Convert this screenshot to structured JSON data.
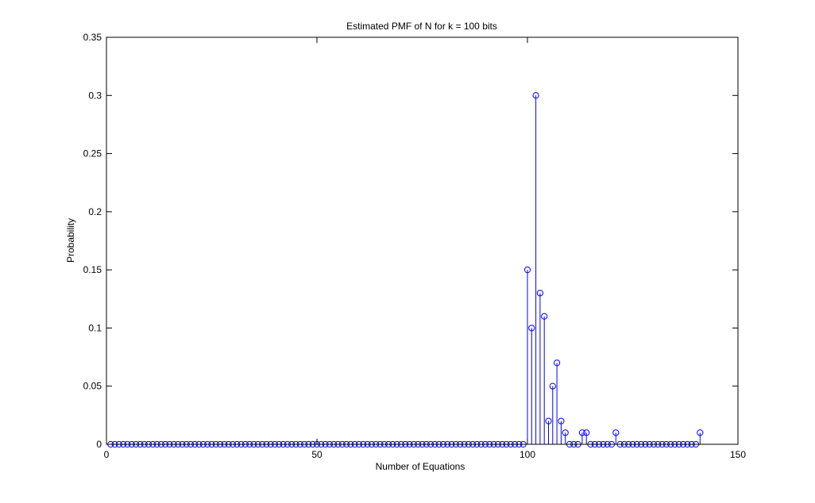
{
  "chart_data": {
    "type": "stem",
    "title": "Estimated PMF of N for k = 100 bits",
    "xlabel": "Number of Equations",
    "ylabel": "Probability",
    "xlim": [
      0,
      150
    ],
    "ylim": [
      0,
      0.35
    ],
    "xticks": [
      0,
      50,
      100,
      150
    ],
    "xtick_labels": [
      "0",
      "50",
      "100",
      "150"
    ],
    "yticks": [
      0,
      0.05,
      0.1,
      0.15,
      0.2,
      0.25,
      0.3,
      0.35
    ],
    "ytick_labels": [
      "0",
      "0.05",
      "0.1",
      "0.15",
      "0.2",
      "0.25",
      "0.3",
      "0.35"
    ],
    "grid": false,
    "marker": "circle",
    "color": "#0000ff",
    "x_range": [
      1,
      141
    ],
    "nonzero_points": [
      {
        "x": 100,
        "y": 0.15
      },
      {
        "x": 101,
        "y": 0.1
      },
      {
        "x": 102,
        "y": 0.3
      },
      {
        "x": 103,
        "y": 0.13
      },
      {
        "x": 104,
        "y": 0.11
      },
      {
        "x": 105,
        "y": 0.02
      },
      {
        "x": 106,
        "y": 0.05
      },
      {
        "x": 107,
        "y": 0.07
      },
      {
        "x": 108,
        "y": 0.02
      },
      {
        "x": 109,
        "y": 0.01
      },
      {
        "x": 113,
        "y": 0.01
      },
      {
        "x": 114,
        "y": 0.01
      },
      {
        "x": 121,
        "y": 0.01
      },
      {
        "x": 141,
        "y": 0.01
      }
    ]
  }
}
